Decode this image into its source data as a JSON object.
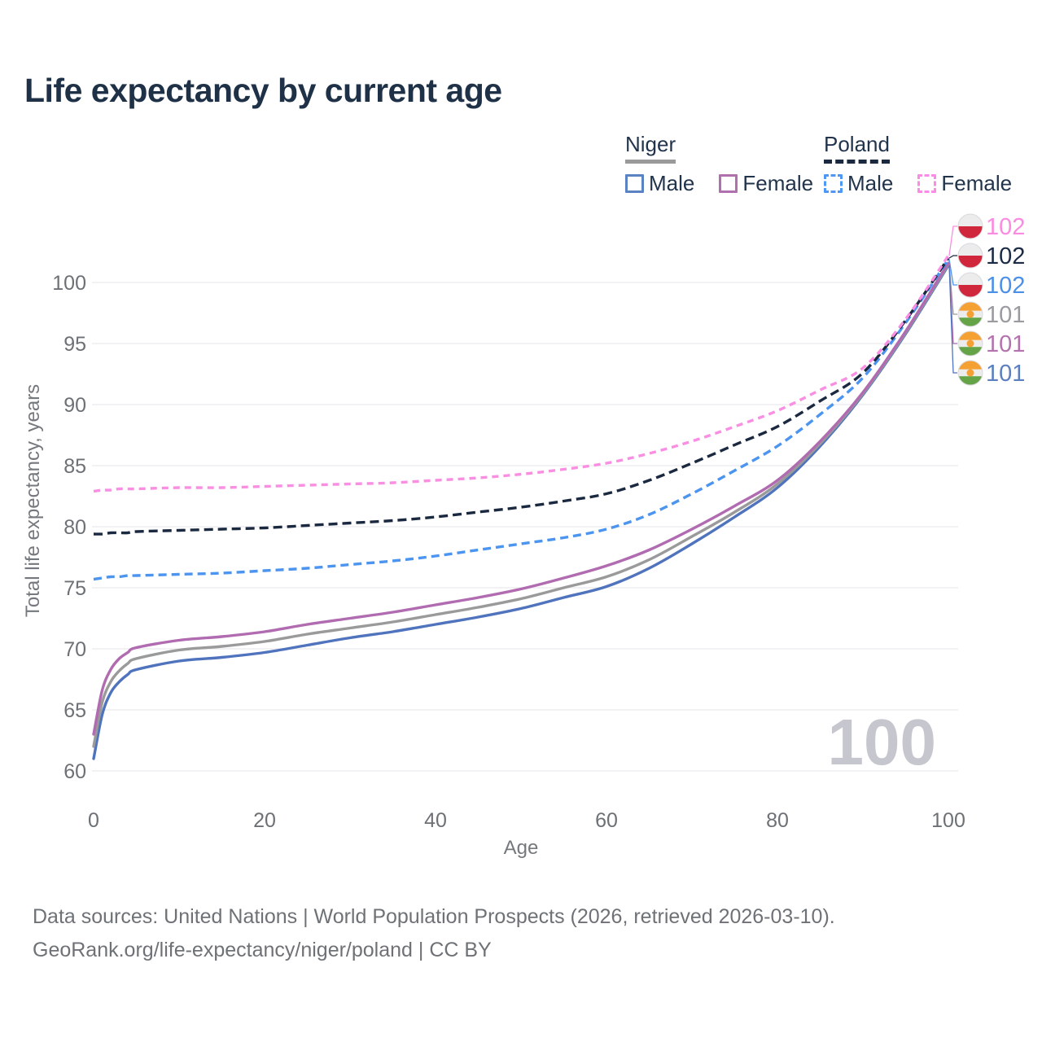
{
  "title": "Life expectancy by current age",
  "watermark": "100",
  "footer": {
    "line1": "Data sources: United Nations | World Population Prospects (2026, retrieved 2026-03-10).",
    "line2": "GeoRank.org/life-expectancy/niger/poland | CC BY"
  },
  "legend": {
    "position": "top-right",
    "groups": [
      {
        "label": "Niger",
        "line_style": "solid",
        "underline_color": "#9a9a9a",
        "items": [
          {
            "label": "Male",
            "color": "#5b82c3"
          },
          {
            "label": "Female",
            "color": "#b06fad"
          }
        ]
      },
      {
        "label": "Poland",
        "line_style": "dashed",
        "underline_color": "#1b2940",
        "items": [
          {
            "label": "Male",
            "color": "#4f97f7"
          },
          {
            "label": "Female",
            "color": "#fb8ce5"
          }
        ]
      }
    ]
  },
  "flags": {
    "poland": {
      "white": "#ececec",
      "red": "#d0273d",
      "outline": "#d9d9de"
    },
    "niger": {
      "orange": "#f5a033",
      "white": "#ececec",
      "green": "#64a346",
      "outline": "#d9d9de"
    }
  },
  "chart_data": {
    "type": "line",
    "title": "Life expectancy by current age",
    "xlabel": "Age",
    "ylabel": "Total life expectancy, years",
    "xlim": [
      0,
      100
    ],
    "ylim": [
      60,
      103
    ],
    "x_ticks": [
      0,
      20,
      40,
      60,
      80,
      100
    ],
    "y_ticks": [
      60,
      65,
      70,
      75,
      80,
      85,
      90,
      95,
      100
    ],
    "grid": "horizontal",
    "legend_position": "top-right",
    "x": [
      0,
      1,
      2,
      3,
      4,
      5,
      10,
      15,
      20,
      25,
      30,
      35,
      40,
      45,
      50,
      55,
      60,
      65,
      70,
      75,
      80,
      85,
      90,
      95,
      100
    ],
    "series": [
      {
        "id": "niger_male",
        "name": "Niger Male",
        "country": "Niger",
        "sex": "Male",
        "style": "solid",
        "dash": "none",
        "color": "#4f73bd",
        "end_label": "101",
        "end_label_color": "#5b7fc0",
        "flag": "niger",
        "values": [
          61.0,
          64.6,
          66.4,
          67.3,
          67.9,
          68.3,
          69.0,
          69.3,
          69.7,
          70.3,
          70.9,
          71.4,
          72.0,
          72.6,
          73.3,
          74.2,
          75.1,
          76.6,
          78.6,
          80.8,
          83.2,
          86.6,
          90.8,
          95.8,
          101.4
        ]
      },
      {
        "id": "niger_total",
        "name": "Niger",
        "country": "Niger",
        "sex": "Both sexes",
        "style": "solid",
        "dash": "none",
        "color": "#9a9a9a",
        "end_label": "101",
        "end_label_color": "#9a9aa0",
        "flag": "niger",
        "values": [
          62.0,
          65.6,
          67.3,
          68.2,
          68.8,
          69.2,
          69.9,
          70.2,
          70.6,
          71.2,
          71.7,
          72.2,
          72.8,
          73.4,
          74.1,
          75.0,
          75.9,
          77.3,
          79.2,
          81.2,
          83.5,
          86.8,
          90.9,
          95.9,
          101.5
        ]
      },
      {
        "id": "niger_female",
        "name": "Niger Female",
        "country": "Niger",
        "sex": "Female",
        "style": "solid",
        "dash": "none",
        "color": "#b16bb0",
        "end_label": "101",
        "end_label_color": "#b472ae",
        "flag": "niger",
        "values": [
          63.0,
          66.6,
          68.3,
          69.2,
          69.7,
          70.1,
          70.7,
          71.0,
          71.4,
          72.0,
          72.5,
          73.0,
          73.6,
          74.2,
          74.9,
          75.8,
          76.8,
          78.1,
          79.8,
          81.7,
          83.8,
          87.0,
          91.0,
          96.0,
          101.6
        ]
      },
      {
        "id": "poland_male",
        "name": "Poland Male",
        "country": "Poland",
        "sex": "Male",
        "style": "dashed",
        "dash": "10 6",
        "color": "#4b94f0",
        "end_label": "102",
        "end_label_color": "#4a90e8",
        "flag": "poland",
        "values": [
          75.7,
          75.8,
          75.9,
          75.9,
          76.0,
          76.0,
          76.1,
          76.2,
          76.4,
          76.6,
          76.9,
          77.2,
          77.6,
          78.1,
          78.6,
          79.1,
          79.8,
          81.0,
          82.7,
          84.6,
          86.6,
          89.2,
          92.2,
          96.7,
          101.9
        ]
      },
      {
        "id": "poland_total",
        "name": "Poland",
        "country": "Poland",
        "sex": "Both sexes",
        "style": "dashed",
        "dash": "11 6",
        "color": "#1b2940",
        "end_label": "102",
        "end_label_color": "#1b2b45",
        "flag": "poland",
        "values": [
          79.4,
          79.4,
          79.5,
          79.5,
          79.5,
          79.6,
          79.7,
          79.8,
          79.9,
          80.1,
          80.3,
          80.5,
          80.8,
          81.2,
          81.6,
          82.1,
          82.7,
          83.8,
          85.2,
          86.7,
          88.2,
          90.3,
          92.6,
          96.9,
          102.0
        ]
      },
      {
        "id": "poland_female",
        "name": "Poland Female",
        "country": "Poland",
        "sex": "Female",
        "style": "dashed",
        "dash": "8 6",
        "color": "#f98ee3",
        "end_label": "102",
        "end_label_color": "#fb8ae1",
        "flag": "poland",
        "values": [
          82.9,
          83.0,
          83.0,
          83.1,
          83.1,
          83.1,
          83.2,
          83.2,
          83.3,
          83.4,
          83.5,
          83.6,
          83.8,
          84.0,
          84.3,
          84.7,
          85.2,
          86.0,
          87.0,
          88.2,
          89.5,
          91.2,
          93.0,
          97.0,
          102.2
        ]
      }
    ],
    "end_label_rows": [
      "poland_female",
      "poland_total",
      "poland_male",
      "niger_total",
      "niger_female",
      "niger_male"
    ]
  }
}
